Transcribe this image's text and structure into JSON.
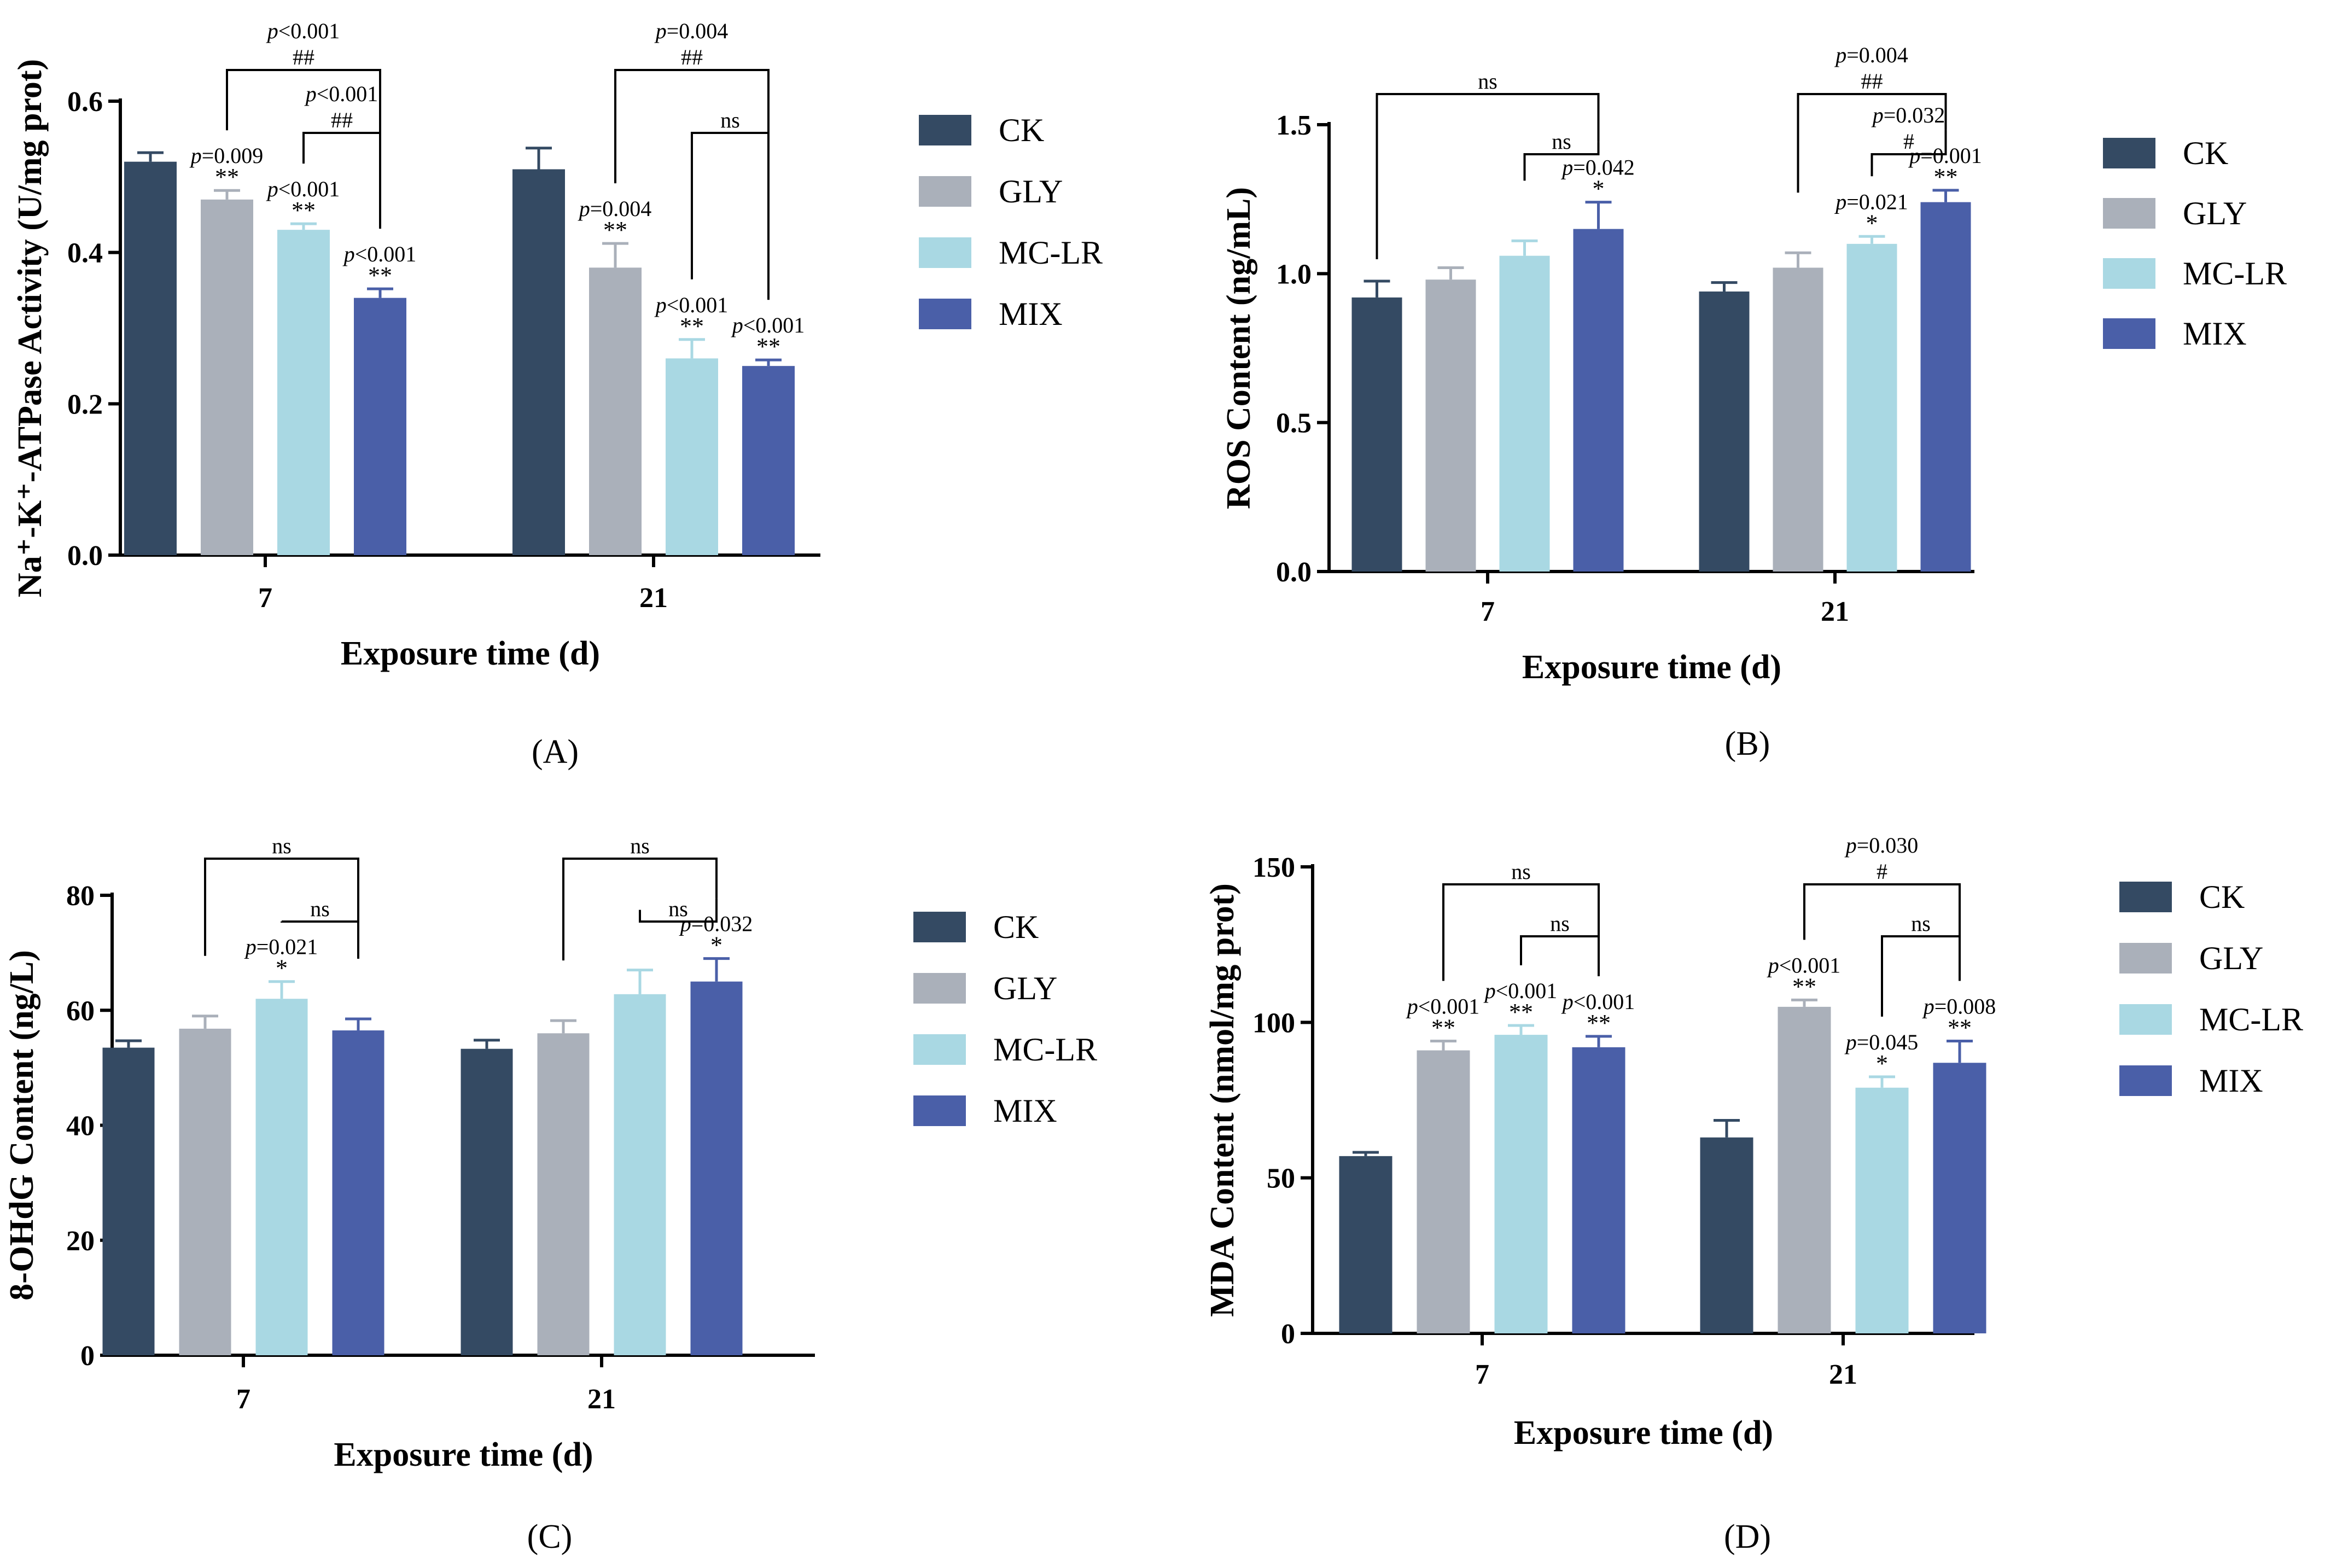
{
  "figure": {
    "groups": [
      "CK",
      "GLY",
      "MC-LR",
      "MIX"
    ],
    "colors": {
      "CK": "#344a63",
      "GLY": "#aab0ba",
      "MC-LR": "#a9d8e3",
      "MIX": "#4a5fa8"
    }
  },
  "chart_data": [
    {
      "panel_label": "(A)",
      "type": "bar",
      "title": "",
      "xlabel": "Exposure time (d)",
      "ylabel": "Na⁺-K⁺-ATPase Activity (U/mg prot)",
      "ylim": [
        0,
        0.6
      ],
      "yticks": [
        "0.0",
        "0.2",
        "0.4",
        "0.6"
      ],
      "categories": [
        "7",
        "21"
      ],
      "series": [
        {
          "name": "CK",
          "values": [
            0.52,
            0.51
          ],
          "errors": [
            0.012,
            0.028
          ]
        },
        {
          "name": "GLY",
          "values": [
            0.47,
            0.38
          ],
          "errors": [
            0.012,
            0.032
          ]
        },
        {
          "name": "MC-LR",
          "values": [
            0.43,
            0.26
          ],
          "errors": [
            0.008,
            0.025
          ]
        },
        {
          "name": "MIX",
          "values": [
            0.34,
            0.25
          ],
          "errors": [
            0.012,
            0.008
          ]
        }
      ],
      "annotations": [
        {
          "category": 0,
          "series": 1,
          "p": "=0.009",
          "stars": "**"
        },
        {
          "category": 0,
          "series": 2,
          "p": "<0.001",
          "stars": "**"
        },
        {
          "category": 0,
          "series": 3,
          "p": "<0.001",
          "stars": "**"
        },
        {
          "category": 1,
          "series": 1,
          "p": "=0.004",
          "stars": "**"
        },
        {
          "category": 1,
          "series": 2,
          "p": "<0.001",
          "stars": "**"
        },
        {
          "category": 1,
          "series": 3,
          "p": "<0.001",
          "stars": "**"
        }
      ],
      "brackets": [
        {
          "category": 0,
          "from": 1,
          "to": 3,
          "p": "<0.001",
          "label": "##",
          "level": 0
        },
        {
          "category": 0,
          "from": 2,
          "to": 3,
          "p": "<0.001",
          "label": "##",
          "level": 1
        },
        {
          "category": 1,
          "from": 1,
          "to": 3,
          "p": "=0.004",
          "label": "##",
          "level": 0
        },
        {
          "category": 1,
          "from": 2,
          "to": 3,
          "label": "ns",
          "level": 1
        }
      ]
    },
    {
      "panel_label": "(B)",
      "type": "bar",
      "title": "",
      "xlabel": "Exposure time (d)",
      "ylabel": "ROS Content (ng/mL)",
      "ylim": [
        0,
        1.5
      ],
      "yticks": [
        "0.0",
        "0.5",
        "1.0",
        "1.5"
      ],
      "categories": [
        "7",
        "21"
      ],
      "series": [
        {
          "name": "CK",
          "values": [
            0.92,
            0.94
          ],
          "errors": [
            0.055,
            0.03
          ]
        },
        {
          "name": "GLY",
          "values": [
            0.98,
            1.02
          ],
          "errors": [
            0.04,
            0.05
          ]
        },
        {
          "name": "MC-LR",
          "values": [
            1.06,
            1.1
          ],
          "errors": [
            0.05,
            0.025
          ]
        },
        {
          "name": "MIX",
          "values": [
            1.15,
            1.24
          ],
          "errors": [
            0.09,
            0.04
          ]
        }
      ],
      "annotations": [
        {
          "category": 0,
          "series": 3,
          "p": "=0.042",
          "stars": "*"
        },
        {
          "category": 1,
          "series": 2,
          "p": "=0.021",
          "stars": "*"
        },
        {
          "category": 1,
          "series": 3,
          "p": "=0.001",
          "stars": "**"
        }
      ],
      "brackets": [
        {
          "category": 0,
          "from": 0,
          "to": 3,
          "label": "ns",
          "level": 0
        },
        {
          "category": 0,
          "from": 2,
          "to": 3,
          "label": "ns",
          "level": 1
        },
        {
          "category": 1,
          "from": 1,
          "to": 3,
          "p": "=0.004",
          "label": "##",
          "level": 0
        },
        {
          "category": 1,
          "from": 2,
          "to": 3,
          "p": "=0.032",
          "label": "#",
          "level": 1
        }
      ]
    },
    {
      "panel_label": "(C)",
      "type": "bar",
      "title": "",
      "xlabel": "Exposure time (d)",
      "ylabel": "8-OHdG Content (ng/L)",
      "ylim": [
        0,
        80
      ],
      "yticks": [
        "0",
        "20",
        "40",
        "60",
        "80"
      ],
      "categories": [
        "7",
        "21"
      ],
      "series": [
        {
          "name": "CK",
          "values": [
            53.5,
            53.3
          ],
          "errors": [
            1.2,
            1.5
          ]
        },
        {
          "name": "GLY",
          "values": [
            56.8,
            56.0
          ],
          "errors": [
            2.2,
            2.2
          ]
        },
        {
          "name": "MC-LR",
          "values": [
            62.0,
            62.8
          ],
          "errors": [
            3.0,
            4.2
          ]
        },
        {
          "name": "MIX",
          "values": [
            56.5,
            65.0
          ],
          "errors": [
            2.0,
            4.0
          ]
        }
      ],
      "annotations": [
        {
          "category": 0,
          "series": 2,
          "p": "=0.021",
          "stars": "*"
        },
        {
          "category": 1,
          "series": 3,
          "p": "=0.032",
          "stars": "*"
        }
      ],
      "brackets": [
        {
          "category": 0,
          "from": 1,
          "to": 3,
          "label": "ns",
          "level": 0
        },
        {
          "category": 0,
          "from": 2,
          "to": 3,
          "label": "ns",
          "level": 1
        },
        {
          "category": 1,
          "from": 1,
          "to": 3,
          "label": "ns",
          "level": 0
        },
        {
          "category": 1,
          "from": 2,
          "to": 3,
          "label": "ns",
          "level": 1
        }
      ]
    },
    {
      "panel_label": "(D)",
      "type": "bar",
      "title": "",
      "xlabel": "Exposure time (d)",
      "ylabel": "MDA Content (nmol/mg prot)",
      "ylim": [
        0,
        150
      ],
      "yticks": [
        "0",
        "50",
        "100",
        "150"
      ],
      "categories": [
        "7",
        "21"
      ],
      "series": [
        {
          "name": "CK",
          "values": [
            57,
            63
          ],
          "errors": [
            1.2,
            5.5
          ]
        },
        {
          "name": "GLY",
          "values": [
            91,
            105
          ],
          "errors": [
            3.0,
            2.2
          ]
        },
        {
          "name": "MC-LR",
          "values": [
            96,
            79
          ],
          "errors": [
            3.0,
            3.5
          ]
        },
        {
          "name": "MIX",
          "values": [
            92,
            87
          ],
          "errors": [
            3.5,
            7.0
          ]
        }
      ],
      "annotations": [
        {
          "category": 0,
          "series": 1,
          "p": "<0.001",
          "stars": "**"
        },
        {
          "category": 0,
          "series": 2,
          "p": "<0.001",
          "stars": "**"
        },
        {
          "category": 0,
          "series": 3,
          "p": "<0.001",
          "stars": "**"
        },
        {
          "category": 1,
          "series": 1,
          "p": "<0.001",
          "stars": "**"
        },
        {
          "category": 1,
          "series": 2,
          "p": "=0.045",
          "stars": "*"
        },
        {
          "category": 1,
          "series": 3,
          "p": "=0.008",
          "stars": "**"
        }
      ],
      "brackets": [
        {
          "category": 0,
          "from": 1,
          "to": 3,
          "label": "ns",
          "level": 0
        },
        {
          "category": 0,
          "from": 2,
          "to": 3,
          "label": "ns",
          "level": 1
        },
        {
          "category": 1,
          "from": 1,
          "to": 3,
          "p": "=0.030",
          "label": "#",
          "level": 0
        },
        {
          "category": 1,
          "from": 2,
          "to": 3,
          "label": "ns",
          "level": 1
        }
      ]
    }
  ]
}
